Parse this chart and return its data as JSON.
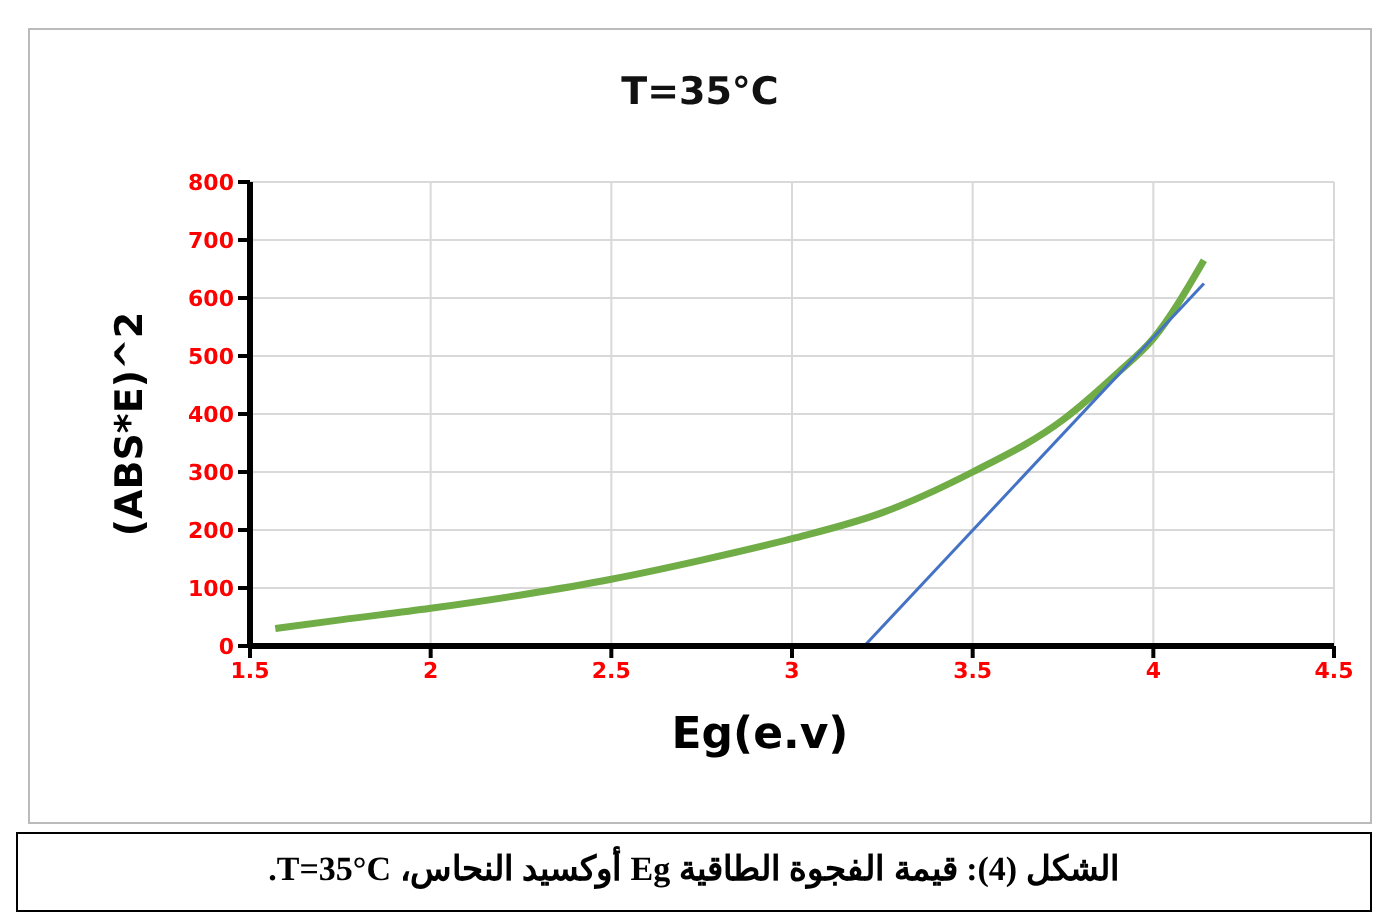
{
  "chart_data": {
    "type": "line",
    "title": "T=35°C",
    "xlabel": "Eg(e.v)",
    "ylabel": "(ABS*E)^2",
    "xlim": [
      1.5,
      4.5
    ],
    "xticks": [
      1.5,
      2,
      2.5,
      3,
      3.5,
      4,
      4.5
    ],
    "ylim": [
      0,
      800
    ],
    "yticks": [
      0,
      100,
      200,
      300,
      400,
      500,
      600,
      700,
      800
    ],
    "grid": true,
    "marker": "none",
    "series": [
      {
        "color": "#70ad47",
        "x": [
          1.57,
          1.75,
          2,
          2.25,
          2.5,
          2.75,
          3,
          3.25,
          3.5,
          3.75,
          3.9,
          4,
          4.14
        ],
        "values": [
          30,
          45,
          65,
          88,
          115,
          148,
          185,
          230,
          300,
          390,
          470,
          530,
          665
        ]
      },
      {
        "type": "line",
        "color": "#4472c4",
        "x": [
          3.2,
          4.14
        ],
        "values": [
          0,
          625
        ]
      }
    ],
    "annotations": [
      "الشكل (4): قيمة الفجوة الطاقية Eg أوكسيد النحاس، T=35°C."
    ]
  }
}
